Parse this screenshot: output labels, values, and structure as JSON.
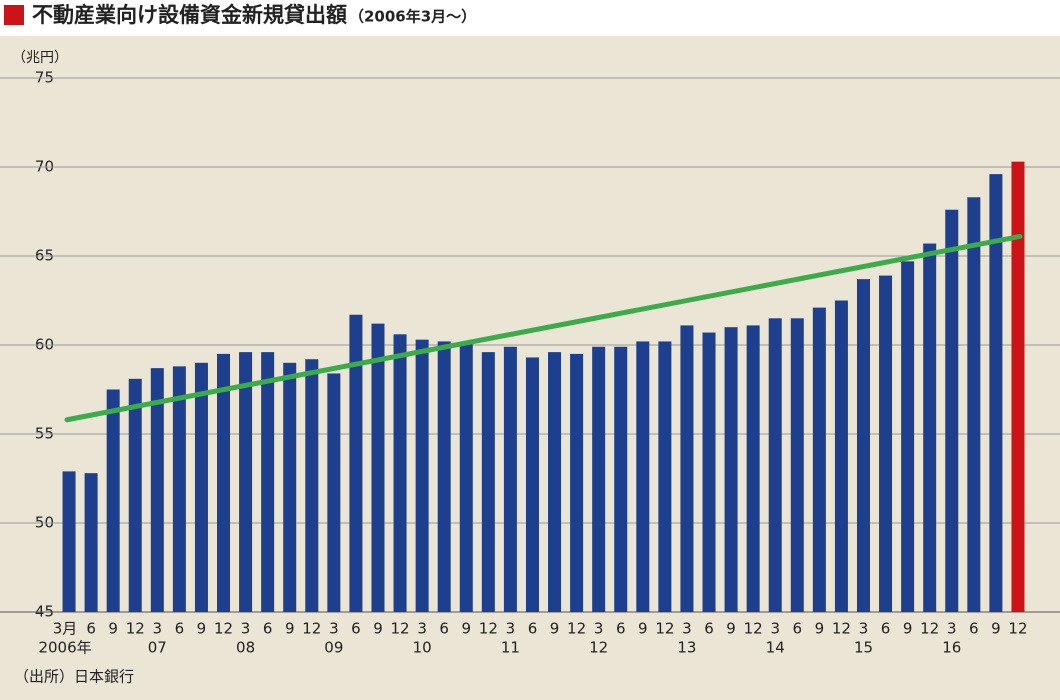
{
  "chart_data": {
    "type": "bar",
    "title": "不動産業向け設備資金新規貸出額",
    "subtitle": "（2006年3月〜）",
    "y_label": "（兆円）",
    "source": "（出所）日本銀行",
    "categories": [
      "3月",
      "6",
      "9",
      "12",
      "3",
      "6",
      "9",
      "12",
      "3",
      "6",
      "9",
      "12",
      "3",
      "6",
      "9",
      "12",
      "3",
      "6",
      "9",
      "12",
      "3",
      "6",
      "9",
      "12",
      "3",
      "6",
      "9",
      "12",
      "3",
      "6",
      "9",
      "12",
      "3",
      "6",
      "9",
      "12",
      "3",
      "6",
      "9",
      "12",
      "3",
      "6",
      "9",
      "12"
    ],
    "year_labels": [
      "2006年",
      "07",
      "08",
      "09",
      "10",
      "11",
      "12",
      "13",
      "14",
      "15",
      "16"
    ],
    "values": [
      52.9,
      52.8,
      57.5,
      58.1,
      58.7,
      58.8,
      59.0,
      59.5,
      59.6,
      59.6,
      59.0,
      59.2,
      58.4,
      61.7,
      61.2,
      60.6,
      60.3,
      60.2,
      60.1,
      59.6,
      59.9,
      59.3,
      59.6,
      59.5,
      59.9,
      59.9,
      60.2,
      60.2,
      61.1,
      60.7,
      61.0,
      61.1,
      61.5,
      61.5,
      62.1,
      62.5,
      63.7,
      63.9,
      64.7,
      65.7,
      67.6,
      68.3,
      69.6,
      70.3
    ],
    "colors": [
      "#1d3f8d",
      "#1d3f8d",
      "#1d3f8d",
      "#1d3f8d",
      "#1d3f8d",
      "#1d3f8d",
      "#1d3f8d",
      "#1d3f8d",
      "#1d3f8d",
      "#1d3f8d",
      "#1d3f8d",
      "#1d3f8d",
      "#1d3f8d",
      "#1d3f8d",
      "#1d3f8d",
      "#1d3f8d",
      "#1d3f8d",
      "#1d3f8d",
      "#1d3f8d",
      "#1d3f8d",
      "#1d3f8d",
      "#1d3f8d",
      "#1d3f8d",
      "#1d3f8d",
      "#1d3f8d",
      "#1d3f8d",
      "#1d3f8d",
      "#1d3f8d",
      "#1d3f8d",
      "#1d3f8d",
      "#1d3f8d",
      "#1d3f8d",
      "#1d3f8d",
      "#1d3f8d",
      "#1d3f8d",
      "#1d3f8d",
      "#1d3f8d",
      "#1d3f8d",
      "#1d3f8d",
      "#1d3f8d",
      "#1d3f8d",
      "#1d3f8d",
      "#1d3f8d",
      "#cc1418"
    ],
    "trend": {
      "values": [
        55.8,
        66.1
      ],
      "color": "#3cab4a"
    },
    "ylim": [
      45,
      75
    ],
    "yticks": [
      45,
      50,
      55,
      60,
      65,
      70,
      75
    ],
    "grid": true
  }
}
